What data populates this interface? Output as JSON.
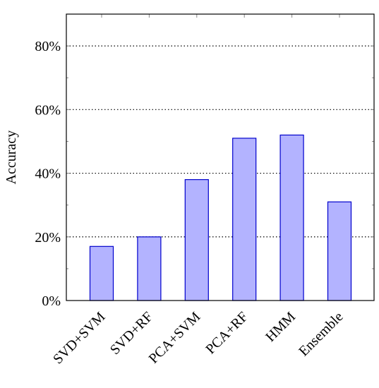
{
  "chart_data": {
    "type": "bar",
    "y_label": "Accuracy",
    "categories": [
      "SVD+SVM",
      "SVD+RF",
      "PCA+SVM",
      "PCA+RF",
      "HMM",
      "Ensemble"
    ],
    "values": [
      17,
      20,
      38,
      51,
      52,
      31
    ],
    "color": "#b3b3ff",
    "edge_color": "#0000cc",
    "ylim": [
      0,
      90
    ],
    "yticks": [
      {
        "value": 0,
        "label": "0%"
      },
      {
        "value": 20,
        "label": "20%"
      },
      {
        "value": 40,
        "label": "40%"
      },
      {
        "value": 60,
        "label": "60%"
      },
      {
        "value": 80,
        "label": "80%"
      }
    ],
    "minor_yticks": [
      10,
      30,
      50,
      70
    ],
    "grid": true
  }
}
